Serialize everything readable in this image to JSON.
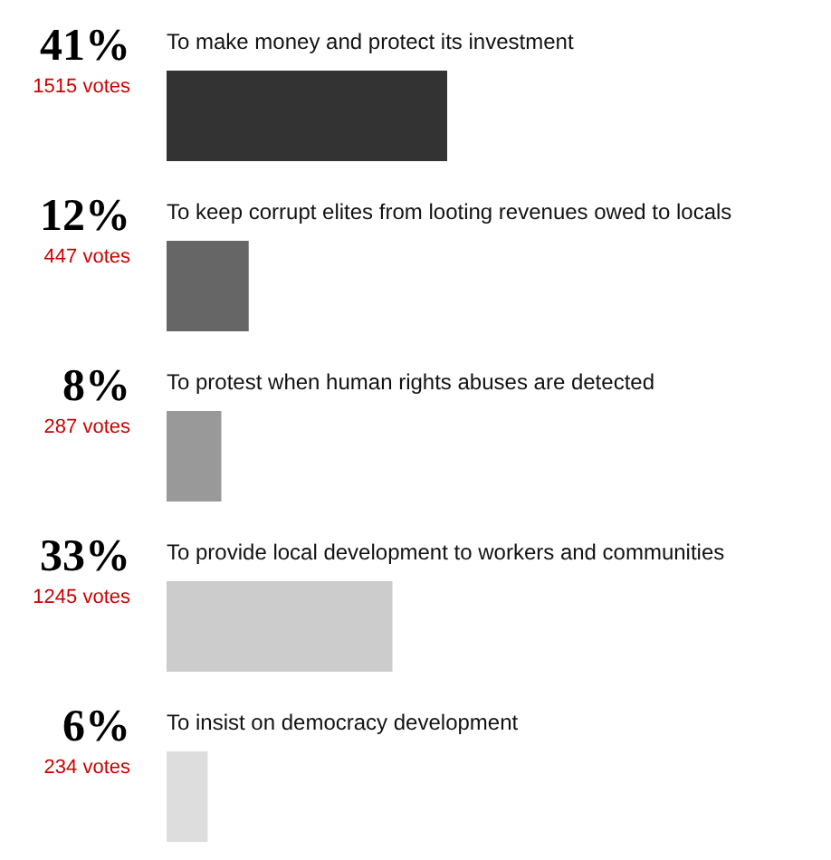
{
  "chart_data": {
    "type": "bar",
    "orientation": "horizontal",
    "categories": [
      "To make money and protect its investment",
      "To keep corrupt elites from looting revenues owed to locals",
      "To protest when human rights abuses are detected",
      "To provide local development to workers and communities",
      "To insist on democracy development"
    ],
    "values": [
      41,
      12,
      8,
      33,
      6
    ],
    "value_labels": [
      "41%",
      "12%",
      "8%",
      "33%",
      "6%"
    ],
    "colors": [
      "#333333",
      "#666666",
      "#999999",
      "#cccccc",
      "#dddddd"
    ],
    "annotations": [
      "1515 votes",
      "447 votes",
      "287 votes",
      "1245 votes",
      "234 votes"
    ]
  }
}
